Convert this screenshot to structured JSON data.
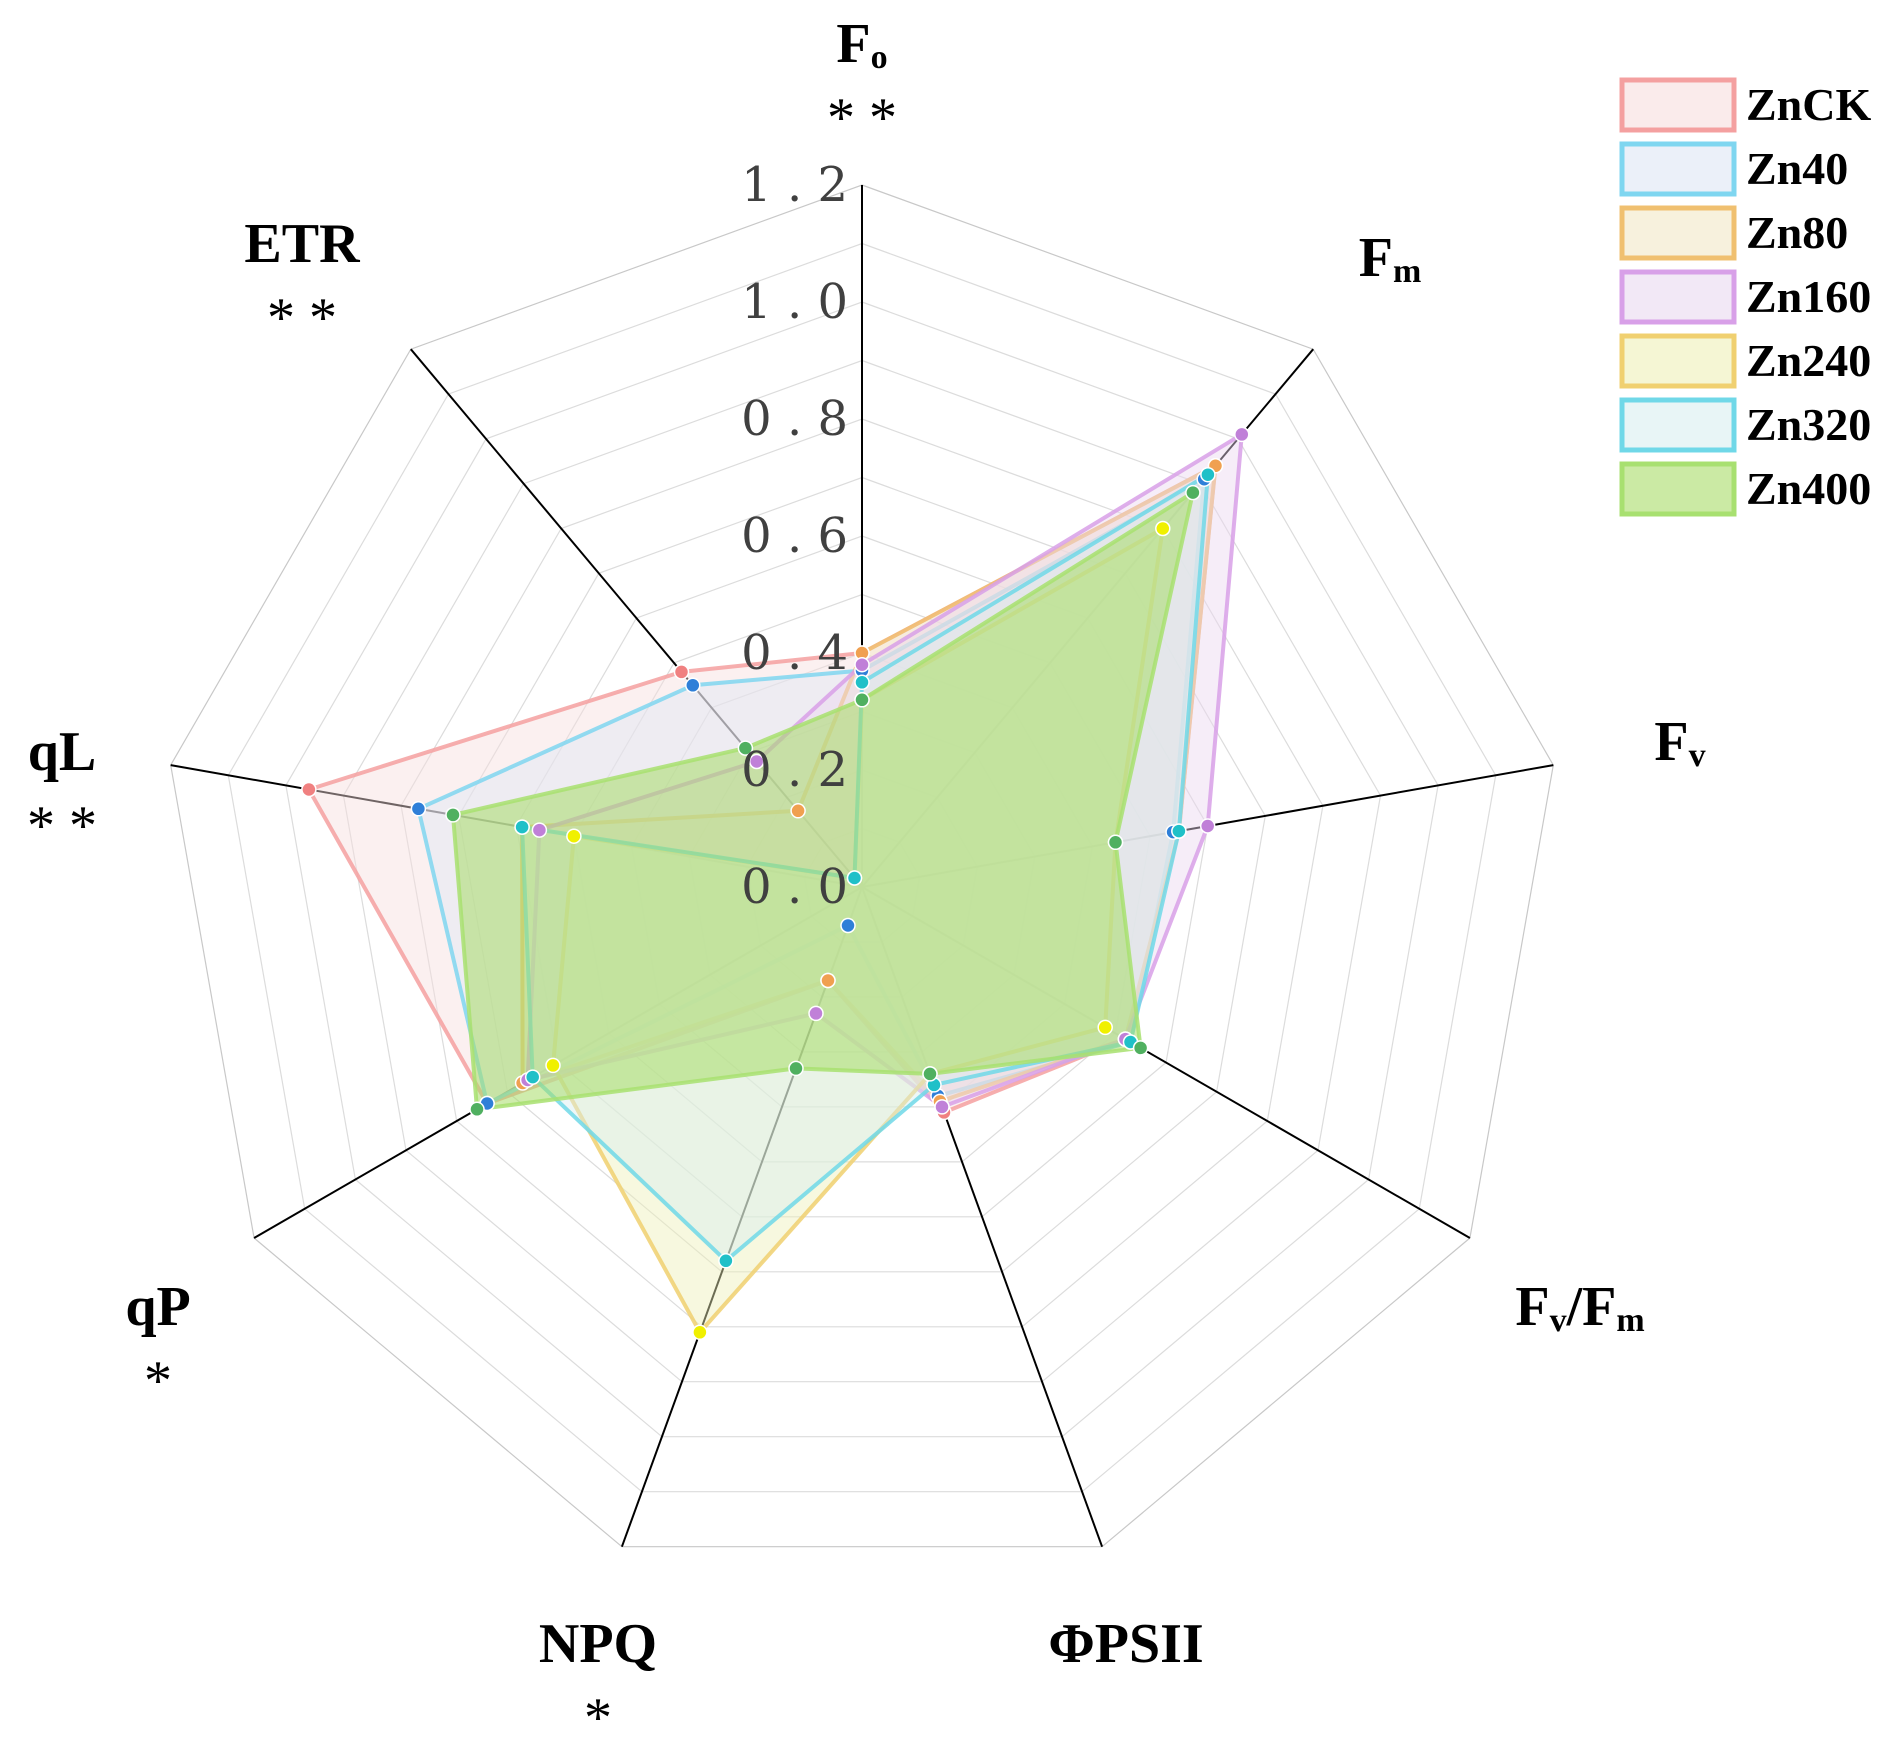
{
  "chart_data": {
    "type": "radar",
    "rlim": [
      0,
      1.2
    ],
    "ticks": [
      "0.0",
      "0.2",
      "0.4",
      "0.6",
      "0.8",
      "1.0",
      "1.2"
    ],
    "axes": [
      {
        "name": "F",
        "sub": "o",
        "sig": "**"
      },
      {
        "name": "F",
        "sub": "m",
        "sig": ""
      },
      {
        "name": "F",
        "sub": "v",
        "sig": ""
      },
      {
        "name": "F",
        "sub": "v",
        "name2": "/F",
        "sub2": "m",
        "sig": ""
      },
      {
        "name": "ΦPSII",
        "sub": "",
        "sig": ""
      },
      {
        "name": "NPQ",
        "sub": "",
        "sig": "*"
      },
      {
        "name": "qP",
        "sub": "",
        "sig": "*"
      },
      {
        "name": "qL",
        "sub": "",
        "sig": "**"
      },
      {
        "name": "ETR",
        "sub": "",
        "sig": "**"
      }
    ],
    "legend_position": "top-right",
    "series": [
      {
        "name": "ZnCK",
        "color": "#f4a0a0",
        "fill": "#f7dede",
        "dot": "#f08080",
        "values": [
          0.4,
          0.94,
          0.55,
          0.52,
          0.41,
          0.17,
          0.74,
          0.96,
          0.48
        ]
      },
      {
        "name": "Zn40",
        "color": "#7fd6f0",
        "fill": "#dde6f5",
        "dot": "#2f7fd8",
        "values": [
          0.37,
          0.91,
          0.54,
          0.53,
          0.38,
          0.07,
          0.74,
          0.77,
          0.45
        ]
      },
      {
        "name": "Zn80",
        "color": "#f0c070",
        "fill": "#f2e7c6",
        "dot": "#f0a050",
        "values": [
          0.4,
          0.94,
          0.55,
          0.52,
          0.39,
          0.17,
          0.67,
          0.59,
          0.17
        ]
      },
      {
        "name": "Zn160",
        "color": "#d8a0e8",
        "fill": "#ead8f0",
        "dot": "#c080d8",
        "values": [
          0.38,
          1.01,
          0.6,
          0.52,
          0.4,
          0.23,
          0.66,
          0.56,
          0.28
        ]
      },
      {
        "name": "Zn240",
        "color": "#f0d070",
        "fill": "#eef0b8",
        "dot": "#f0f000",
        "values": [
          0.32,
          0.8,
          0.44,
          0.48,
          0.34,
          0.81,
          0.61,
          0.5,
          0.02
        ]
      },
      {
        "name": "Zn320",
        "color": "#70d8e8",
        "fill": "#d8eef0",
        "dot": "#20c0c8",
        "values": [
          0.35,
          0.92,
          0.55,
          0.53,
          0.36,
          0.68,
          0.65,
          0.59,
          0.02
        ]
      },
      {
        "name": "Zn400",
        "color": "#a8e070",
        "fill": "#a8dc68",
        "dot": "#50b060",
        "values": [
          0.32,
          0.88,
          0.44,
          0.55,
          0.34,
          0.33,
          0.76,
          0.71,
          0.31
        ]
      }
    ]
  }
}
